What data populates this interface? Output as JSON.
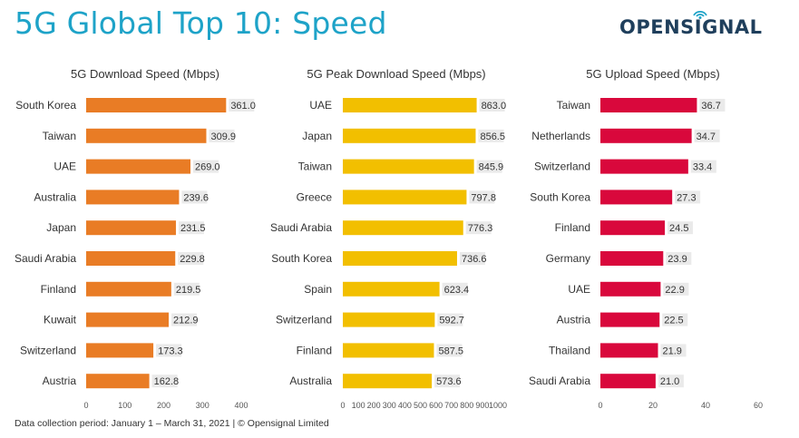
{
  "title": "5G Global Top 10: Speed",
  "logo": {
    "text": "OPENSIGNAL",
    "icon": "signal-arcs-icon",
    "color": "#1f3f5c",
    "accent": "#1ea3c8"
  },
  "footer": "Data collection period: January 1 – March 31, 2021 | © Opensignal Limited",
  "chart_data": [
    {
      "type": "bar",
      "orientation": "horizontal",
      "title": "5G Download Speed (Mbps)",
      "color": "#e97c25",
      "categories": [
        "South Korea",
        "Taiwan",
        "UAE",
        "Australia",
        "Japan",
        "Saudi Arabia",
        "Finland",
        "Kuwait",
        "Switzerland",
        "Austria"
      ],
      "values": [
        361.0,
        309.9,
        269.0,
        239.6,
        231.5,
        229.8,
        219.5,
        212.9,
        173.3,
        162.8
      ],
      "value_labels": [
        "361.0",
        "309.9",
        "269.0",
        "239.6",
        "231.5",
        "229.8",
        "219.5",
        "212.9",
        "173.3",
        "162.8"
      ],
      "xlim": [
        0,
        400
      ],
      "ticks": [
        0,
        100,
        200,
        300,
        400
      ]
    },
    {
      "type": "bar",
      "orientation": "horizontal",
      "title": "5G Peak Download Speed (Mbps)",
      "color": "#f2bf00",
      "categories": [
        "UAE",
        "Japan",
        "Taiwan",
        "Greece",
        "Saudi Arabia",
        "South Korea",
        "Spain",
        "Switzerland",
        "Finland",
        "Australia"
      ],
      "values": [
        863.0,
        856.5,
        845.9,
        797.8,
        776.3,
        736.6,
        623.4,
        592.7,
        587.5,
        573.6
      ],
      "value_labels": [
        "863.0",
        "856.5",
        "845.9",
        "797.8",
        "776.3",
        "736.6",
        "623.4",
        "592.7",
        "587.5",
        "573.6"
      ],
      "xlim": [
        0,
        1000
      ],
      "ticks": [
        0,
        100,
        200,
        300,
        400,
        500,
        600,
        700,
        800,
        900,
        1000
      ]
    },
    {
      "type": "bar",
      "orientation": "horizontal",
      "title": "5G Upload Speed (Mbps)",
      "color": "#d9083c",
      "categories": [
        "Taiwan",
        "Netherlands",
        "Switzerland",
        "South Korea",
        "Finland",
        "Germany",
        "UAE",
        "Austria",
        "Thailand",
        "Saudi Arabia"
      ],
      "values": [
        36.7,
        34.7,
        33.4,
        27.3,
        24.5,
        23.9,
        22.9,
        22.5,
        21.9,
        21.0
      ],
      "value_labels": [
        "36.7",
        "34.7",
        "33.4",
        "27.3",
        "24.5",
        "23.9",
        "22.9",
        "22.5",
        "21.9",
        "21.0"
      ],
      "xlim": [
        0,
        60
      ],
      "ticks": [
        0,
        20,
        40,
        60
      ]
    }
  ]
}
